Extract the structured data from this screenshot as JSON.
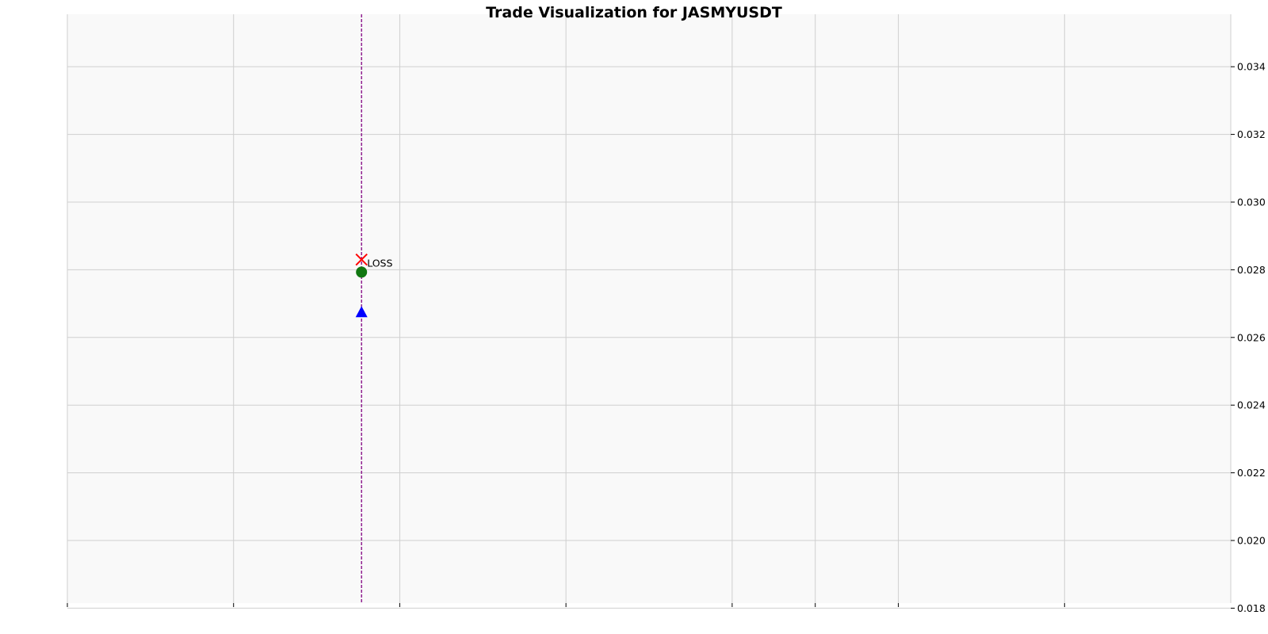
{
  "chart_data": {
    "type": "scatter",
    "title": "Trade Visualization for JASMYUSDT",
    "xlabel": "",
    "ylabel": "",
    "x_range": [
      0,
      7
    ],
    "ylim": [
      0.01815,
      0.03555
    ],
    "y_axis_side": "right",
    "y_ticks": [
      0.018,
      0.02,
      0.022,
      0.024,
      0.026,
      0.028,
      0.03,
      0.032,
      0.034
    ],
    "y_tick_labels": [
      "0.018",
      "0.020",
      "0.022",
      "0.024",
      "0.026",
      "0.028",
      "0.030",
      "0.032",
      "0.034"
    ],
    "x_gridlines": [
      0,
      1,
      2,
      3,
      4,
      4.5,
      5,
      6,
      7
    ],
    "x_ticks": [
      0,
      1,
      2,
      3,
      4,
      4.5,
      5,
      6
    ],
    "grid": true,
    "background": "#f9f9f9",
    "trade_line": {
      "x": 1.77,
      "color": "#800080",
      "style": "dashed"
    },
    "markers": [
      {
        "name": "entry",
        "shape": "triangle",
        "x": 1.77,
        "y": 0.02675,
        "color": "#0000ff"
      },
      {
        "name": "exit",
        "shape": "circle",
        "x": 1.77,
        "y": 0.02793,
        "color": "#117711"
      },
      {
        "name": "stop",
        "shape": "x",
        "x": 1.77,
        "y": 0.0283,
        "color": "#ff0000"
      }
    ],
    "annotations": [
      {
        "text": "LOSS",
        "x": 1.77,
        "y": 0.0283
      }
    ]
  }
}
